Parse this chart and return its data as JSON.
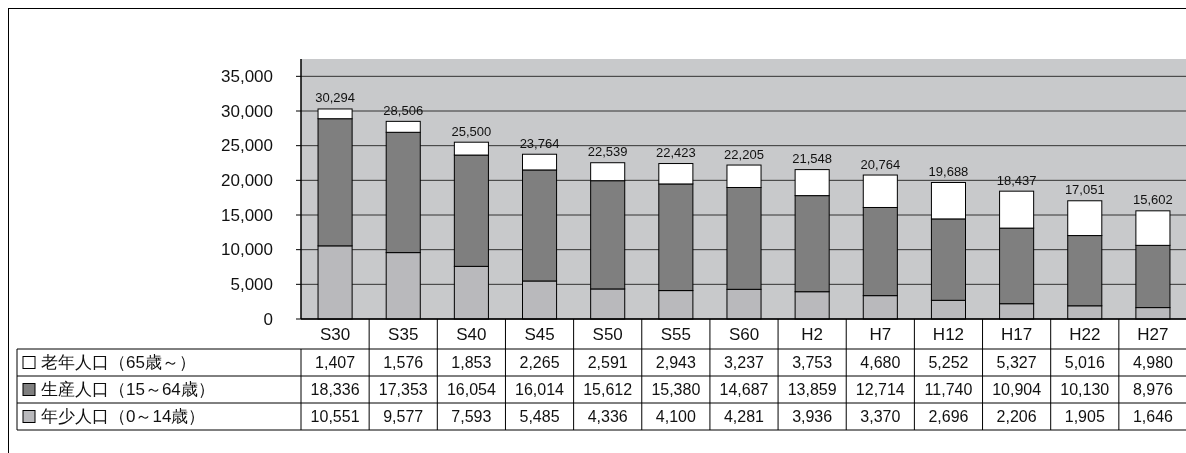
{
  "chart_data": {
    "type": "bar",
    "stacked": true,
    "categories": [
      "S30",
      "S35",
      "S40",
      "S45",
      "S50",
      "S55",
      "S60",
      "H2",
      "H7",
      "H12",
      "H17",
      "H22",
      "H27"
    ],
    "series": [
      {
        "name": "年少人口（0～14歳）",
        "color": "#b9b9bc",
        "values": [
          10551,
          9577,
          7593,
          5485,
          4336,
          4100,
          4281,
          3936,
          3370,
          2696,
          2206,
          1905,
          1646
        ],
        "value_labels": [
          "10,551",
          "9,577",
          "7,593",
          "5,485",
          "4,336",
          "4,100",
          "4,281",
          "3,936",
          "3,370",
          "2,696",
          "2,206",
          "1,905",
          "1,646"
        ]
      },
      {
        "name": "生産人口（15～64歳）",
        "color": "#7f7f7f",
        "values": [
          18336,
          17353,
          16054,
          16014,
          15612,
          15380,
          14687,
          13859,
          12714,
          11740,
          10904,
          10130,
          8976
        ],
        "value_labels": [
          "18,336",
          "17,353",
          "16,054",
          "16,014",
          "15,612",
          "15,380",
          "14,687",
          "13,859",
          "12,714",
          "11,740",
          "10,904",
          "10,130",
          "8,976"
        ]
      },
      {
        "name": "老年人口（65歳～）",
        "color": "#ffffff",
        "values": [
          1407,
          1576,
          1853,
          2265,
          2591,
          2943,
          3237,
          3753,
          4680,
          5252,
          5327,
          5016,
          4980
        ],
        "value_labels": [
          "1,407",
          "1,576",
          "1,853",
          "2,265",
          "2,591",
          "2,943",
          "3,237",
          "3,753",
          "4,680",
          "5,252",
          "5,327",
          "5,016",
          "4,980"
        ]
      }
    ],
    "totals": [
      "30,294",
      "28,506",
      "25,500",
      "23,764",
      "22,539",
      "22,423",
      "22,205",
      "21,548",
      "20,764",
      "19,688",
      "18,437",
      "17,051",
      "15,602"
    ],
    "ylim": [
      0,
      37500
    ],
    "yticks": [
      0,
      {
        "value": 5000,
        "label": "5,000"
      },
      {
        "value": 10000,
        "label": "10,000"
      },
      {
        "value": 15000,
        "label": "15,000"
      },
      {
        "value": 20000,
        "label": "20,000"
      },
      {
        "value": 25000,
        "label": "25,000"
      },
      {
        "value": 30000,
        "label": "30,000"
      },
      {
        "value": 35000,
        "label": "35,000"
      }
    ],
    "grid": "y",
    "legend": "bottom"
  }
}
